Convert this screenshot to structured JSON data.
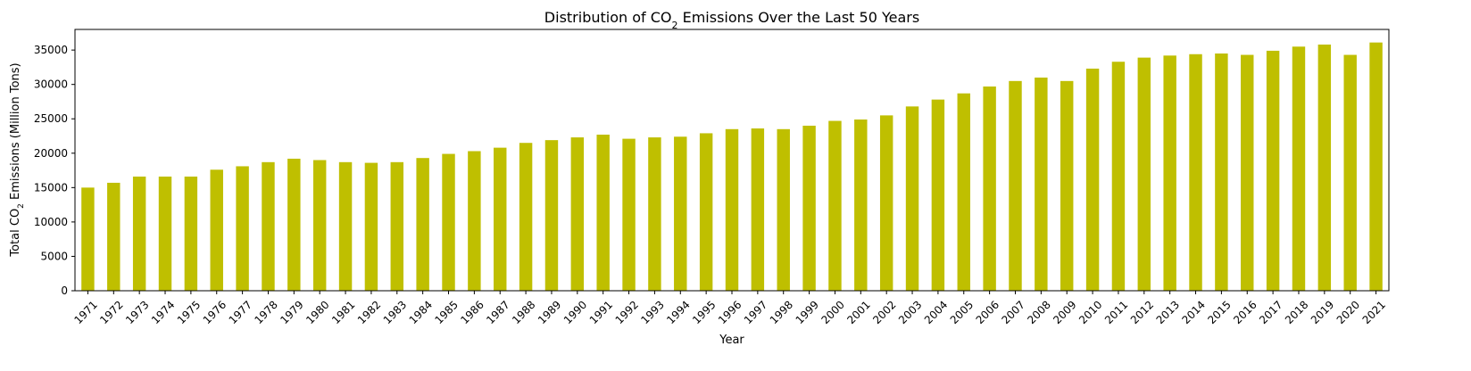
{
  "chart_data": {
    "type": "bar",
    "title": "Distribution of CO₂ Emissions Over the Last 50 Years",
    "title_parts": {
      "before": "Distribution of CO",
      "subscript": "2",
      "after": " Emissions Over the Last 50 Years"
    },
    "xlabel": "Year",
    "ylabel": "Total CO₂ Emissions (Million Tons)",
    "ylabel_parts": {
      "before": "Total CO",
      "subscript": "2",
      "after": " Emissions (Million Tons)"
    },
    "ylim": [
      0,
      38000
    ],
    "yticks": [
      0,
      5000,
      10000,
      15000,
      20000,
      25000,
      30000,
      35000
    ],
    "bar_color": "#bfbf00",
    "grid": false,
    "legend": "none",
    "categories": [
      "1971",
      "1972",
      "1973",
      "1974",
      "1975",
      "1976",
      "1977",
      "1978",
      "1979",
      "1980",
      "1981",
      "1982",
      "1983",
      "1984",
      "1985",
      "1986",
      "1987",
      "1988",
      "1989",
      "1990",
      "1991",
      "1992",
      "1993",
      "1994",
      "1995",
      "1996",
      "1997",
      "1998",
      "1999",
      "2000",
      "2001",
      "2002",
      "2003",
      "2004",
      "2005",
      "2006",
      "2007",
      "2008",
      "2009",
      "2010",
      "2011",
      "2012",
      "2013",
      "2014",
      "2015",
      "2016",
      "2017",
      "2018",
      "2019",
      "2020",
      "2021"
    ],
    "values": [
      15000,
      15700,
      16600,
      16600,
      16600,
      17600,
      18100,
      18700,
      19200,
      19000,
      18700,
      18600,
      18700,
      19300,
      19900,
      20300,
      20800,
      21500,
      21900,
      22300,
      22700,
      22100,
      22300,
      22400,
      22900,
      23500,
      23600,
      23500,
      24000,
      24700,
      24900,
      25500,
      26800,
      27800,
      28700,
      29700,
      30500,
      31000,
      30500,
      32300,
      33300,
      33900,
      34200,
      34400,
      34500,
      34300,
      34900,
      35500,
      35800,
      34300,
      36100
    ]
  }
}
